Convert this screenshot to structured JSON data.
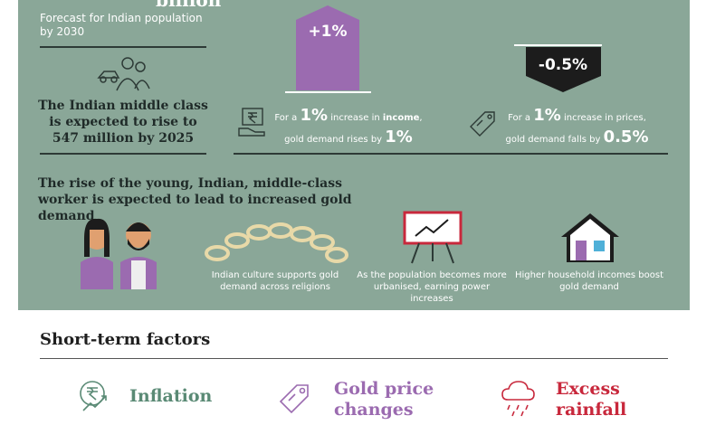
{
  "top": {
    "unit": "billion",
    "caption": "Forecast for Indian population by 2030"
  },
  "middle_class": {
    "text": "The Indian middle class is expected to rise to 547 million by 2025"
  },
  "income": {
    "badge": "+1%",
    "line1": [
      "For a ",
      "1%",
      " increase in ",
      "income",
      ","
    ],
    "line2": [
      "gold demand rises by ",
      "1%"
    ]
  },
  "prices": {
    "badge": "-0.5%",
    "line1": [
      "For a ",
      "1%",
      " increase in prices,"
    ],
    "line2": [
      "gold demand falls by ",
      "0.5%"
    ]
  },
  "young": {
    "heading": "The rise of the young, Indian, middle-class worker is expected to lead to increased gold demand",
    "captions": [
      "Indian culture supports gold demand across religions",
      "As the population becomes more urbanised, earning power increases",
      "Higher household incomes boost gold demand"
    ]
  },
  "short_term": {
    "heading": "Short-term factors",
    "items": [
      "Inflation",
      "Gold price changes",
      "Excess rainfall"
    ]
  }
}
